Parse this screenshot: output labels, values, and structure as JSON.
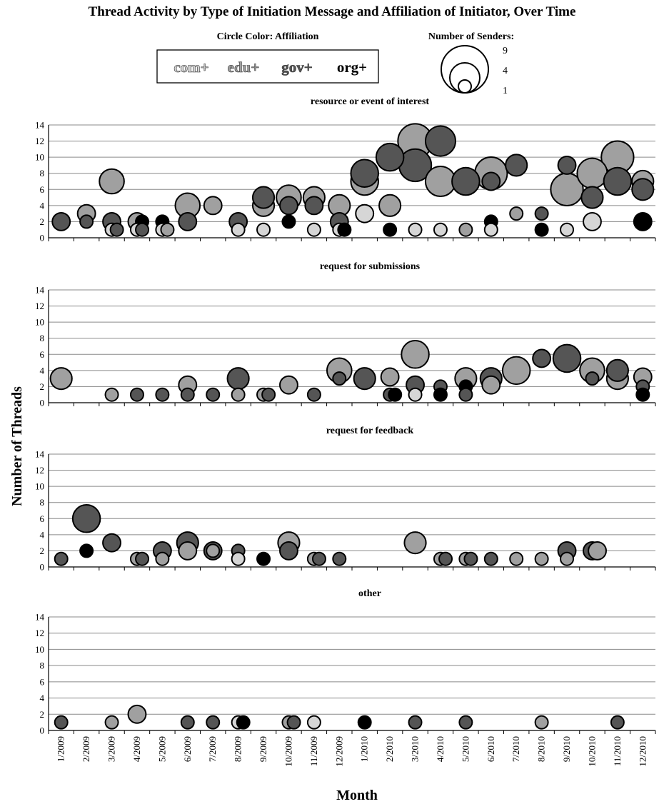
{
  "chart_data": {
    "type": "scatter",
    "title": "Thread Activity by Type of Initiation Message and Affiliation of Initiator, Over Time",
    "xlabel": "Month",
    "ylabel": "Number of Threads",
    "ylim": [
      0,
      14
    ],
    "yticks": [
      "0",
      "2",
      "4",
      "6",
      "8",
      "10",
      "12",
      "14"
    ],
    "grid": true,
    "months": [
      "1/2009",
      "2/2009",
      "3/2009",
      "4/2009",
      "5/2009",
      "6/2009",
      "7/2009",
      "8/2009",
      "9/2009",
      "10/2009",
      "11/2009",
      "12/2009",
      "1/2010",
      "2/2010",
      "3/2010",
      "4/2010",
      "5/2010",
      "6/2010",
      "7/2010",
      "8/2010",
      "9/2010",
      "10/2010",
      "11/2010",
      "12/2010"
    ],
    "color_legend": {
      "title": "Circle Color: Affiliation",
      "items": [
        {
          "label": "com+",
          "color": "#d6d6d6"
        },
        {
          "label": "edu+",
          "color": "#a0a0a0"
        },
        {
          "label": "gov+",
          "color": "#555555"
        },
        {
          "label": "org+",
          "color": "#000000"
        }
      ]
    },
    "size_legend": {
      "title": "Number of Senders:",
      "values": [
        "9",
        "4",
        "1"
      ]
    },
    "panels": [
      {
        "title": "resource or event of interest",
        "points": [
          {
            "x": 1,
            "y": 2,
            "senders": 2,
            "aff": "gov"
          },
          {
            "x": 2,
            "y": 3,
            "senders": 2,
            "aff": "edu"
          },
          {
            "x": 2,
            "y": 2,
            "senders": 1,
            "aff": "gov"
          },
          {
            "x": 3,
            "y": 7,
            "senders": 4,
            "aff": "edu"
          },
          {
            "x": 3,
            "y": 2,
            "senders": 2,
            "aff": "gov"
          },
          {
            "x": 3,
            "y": 1,
            "senders": 1,
            "aff": "com"
          },
          {
            "x": 3.2,
            "y": 1,
            "senders": 1,
            "aff": "gov"
          },
          {
            "x": 4,
            "y": 2,
            "senders": 2,
            "aff": "edu"
          },
          {
            "x": 4.2,
            "y": 2,
            "senders": 1,
            "aff": "org"
          },
          {
            "x": 4,
            "y": 1,
            "senders": 1,
            "aff": "com"
          },
          {
            "x": 4.2,
            "y": 1,
            "senders": 1,
            "aff": "gov"
          },
          {
            "x": 5,
            "y": 2,
            "senders": 1,
            "aff": "org"
          },
          {
            "x": 5,
            "y": 1,
            "senders": 1,
            "aff": "com"
          },
          {
            "x": 5.2,
            "y": 1,
            "senders": 1,
            "aff": "edu"
          },
          {
            "x": 6,
            "y": 4,
            "senders": 4,
            "aff": "edu"
          },
          {
            "x": 6,
            "y": 2,
            "senders": 2,
            "aff": "gov"
          },
          {
            "x": 7,
            "y": 4,
            "senders": 2,
            "aff": "edu"
          },
          {
            "x": 8,
            "y": 2,
            "senders": 2,
            "aff": "gov"
          },
          {
            "x": 8,
            "y": 1,
            "senders": 1,
            "aff": "com"
          },
          {
            "x": 9,
            "y": 4,
            "senders": 3,
            "aff": "edu"
          },
          {
            "x": 9,
            "y": 5,
            "senders": 3,
            "aff": "gov"
          },
          {
            "x": 9,
            "y": 1,
            "senders": 1,
            "aff": "com"
          },
          {
            "x": 10,
            "y": 5,
            "senders": 4,
            "aff": "edu"
          },
          {
            "x": 10,
            "y": 4,
            "senders": 2,
            "aff": "gov"
          },
          {
            "x": 10,
            "y": 2,
            "senders": 1,
            "aff": "org"
          },
          {
            "x": 11,
            "y": 5,
            "senders": 3,
            "aff": "edu"
          },
          {
            "x": 11,
            "y": 4,
            "senders": 2,
            "aff": "gov"
          },
          {
            "x": 11,
            "y": 1,
            "senders": 1,
            "aff": "com"
          },
          {
            "x": 12,
            "y": 4,
            "senders": 3,
            "aff": "edu"
          },
          {
            "x": 12,
            "y": 2,
            "senders": 2,
            "aff": "gov"
          },
          {
            "x": 12,
            "y": 1,
            "senders": 1,
            "aff": "com"
          },
          {
            "x": 12.2,
            "y": 1,
            "senders": 1,
            "aff": "org"
          },
          {
            "x": 13,
            "y": 7,
            "senders": 5,
            "aff": "edu"
          },
          {
            "x": 13,
            "y": 8,
            "senders": 5,
            "aff": "gov"
          },
          {
            "x": 13,
            "y": 3,
            "senders": 2,
            "aff": "com"
          },
          {
            "x": 14,
            "y": 10,
            "senders": 5,
            "aff": "gov"
          },
          {
            "x": 14,
            "y": 4,
            "senders": 3,
            "aff": "edu"
          },
          {
            "x": 14,
            "y": 1,
            "senders": 1,
            "aff": "org"
          },
          {
            "x": 15,
            "y": 12,
            "senders": 8,
            "aff": "edu"
          },
          {
            "x": 15,
            "y": 9,
            "senders": 7,
            "aff": "gov"
          },
          {
            "x": 15,
            "y": 1,
            "senders": 1,
            "aff": "com"
          },
          {
            "x": 16,
            "y": 12,
            "senders": 6,
            "aff": "gov"
          },
          {
            "x": 16,
            "y": 7,
            "senders": 6,
            "aff": "edu"
          },
          {
            "x": 16,
            "y": 1,
            "senders": 1,
            "aff": "com"
          },
          {
            "x": 17,
            "y": 7,
            "senders": 5,
            "aff": "gov"
          },
          {
            "x": 17,
            "y": 1,
            "senders": 1,
            "aff": "edu"
          },
          {
            "x": 18,
            "y": 8,
            "senders": 7,
            "aff": "edu"
          },
          {
            "x": 18,
            "y": 7,
            "senders": 2,
            "aff": "gov"
          },
          {
            "x": 18,
            "y": 2,
            "senders": 1,
            "aff": "org"
          },
          {
            "x": 18,
            "y": 1,
            "senders": 1,
            "aff": "com"
          },
          {
            "x": 19,
            "y": 9,
            "senders": 3,
            "aff": "gov"
          },
          {
            "x": 19,
            "y": 3,
            "senders": 1,
            "aff": "edu"
          },
          {
            "x": 20,
            "y": 3,
            "senders": 1,
            "aff": "gov"
          },
          {
            "x": 20,
            "y": 1,
            "senders": 1,
            "aff": "org"
          },
          {
            "x": 21,
            "y": 6,
            "senders": 7,
            "aff": "edu"
          },
          {
            "x": 21,
            "y": 9,
            "senders": 2,
            "aff": "gov"
          },
          {
            "x": 21,
            "y": 1,
            "senders": 1,
            "aff": "com"
          },
          {
            "x": 22,
            "y": 8,
            "senders": 6,
            "aff": "edu"
          },
          {
            "x": 22,
            "y": 5,
            "senders": 3,
            "aff": "gov"
          },
          {
            "x": 22,
            "y": 2,
            "senders": 2,
            "aff": "com"
          },
          {
            "x": 23,
            "y": 10,
            "senders": 7,
            "aff": "edu"
          },
          {
            "x": 23,
            "y": 7,
            "senders": 5,
            "aff": "gov"
          },
          {
            "x": 24,
            "y": 7,
            "senders": 3,
            "aff": "edu"
          },
          {
            "x": 24,
            "y": 6,
            "senders": 3,
            "aff": "gov"
          },
          {
            "x": 24,
            "y": 2,
            "senders": 2,
            "aff": "org"
          }
        ]
      },
      {
        "title": "request for submissions",
        "points": [
          {
            "x": 1,
            "y": 3,
            "senders": 3,
            "aff": "edu"
          },
          {
            "x": 3,
            "y": 1,
            "senders": 1,
            "aff": "edu"
          },
          {
            "x": 4,
            "y": 1,
            "senders": 1,
            "aff": "gov"
          },
          {
            "x": 5,
            "y": 1,
            "senders": 1,
            "aff": "gov"
          },
          {
            "x": 6,
            "y": 2.2,
            "senders": 2,
            "aff": "edu"
          },
          {
            "x": 6,
            "y": 1,
            "senders": 1,
            "aff": "gov"
          },
          {
            "x": 7,
            "y": 1,
            "senders": 1,
            "aff": "gov"
          },
          {
            "x": 8,
            "y": 3,
            "senders": 3,
            "aff": "gov"
          },
          {
            "x": 8,
            "y": 1,
            "senders": 1,
            "aff": "edu"
          },
          {
            "x": 9,
            "y": 1,
            "senders": 1,
            "aff": "edu"
          },
          {
            "x": 9.2,
            "y": 1,
            "senders": 1,
            "aff": "gov"
          },
          {
            "x": 10,
            "y": 2.2,
            "senders": 2,
            "aff": "edu"
          },
          {
            "x": 11,
            "y": 1,
            "senders": 1,
            "aff": "gov"
          },
          {
            "x": 12,
            "y": 4,
            "senders": 4,
            "aff": "edu"
          },
          {
            "x": 12,
            "y": 3,
            "senders": 1,
            "aff": "gov"
          },
          {
            "x": 13,
            "y": 3,
            "senders": 3,
            "aff": "gov"
          },
          {
            "x": 14,
            "y": 3.2,
            "senders": 2,
            "aff": "edu"
          },
          {
            "x": 14,
            "y": 1,
            "senders": 1,
            "aff": "gov"
          },
          {
            "x": 14.2,
            "y": 1,
            "senders": 1,
            "aff": "org"
          },
          {
            "x": 15,
            "y": 6,
            "senders": 5,
            "aff": "edu"
          },
          {
            "x": 15,
            "y": 2.2,
            "senders": 2,
            "aff": "gov"
          },
          {
            "x": 15,
            "y": 1,
            "senders": 1,
            "aff": "com"
          },
          {
            "x": 16,
            "y": 2,
            "senders": 1,
            "aff": "gov"
          },
          {
            "x": 16,
            "y": 1,
            "senders": 1,
            "aff": "org"
          },
          {
            "x": 17,
            "y": 3,
            "senders": 3,
            "aff": "edu"
          },
          {
            "x": 17,
            "y": 2,
            "senders": 1,
            "aff": "org"
          },
          {
            "x": 17,
            "y": 1,
            "senders": 1,
            "aff": "gov"
          },
          {
            "x": 18,
            "y": 3,
            "senders": 3,
            "aff": "gov"
          },
          {
            "x": 18,
            "y": 2.2,
            "senders": 2,
            "aff": "edu"
          },
          {
            "x": 19,
            "y": 4,
            "senders": 5,
            "aff": "edu"
          },
          {
            "x": 20,
            "y": 5.5,
            "senders": 2,
            "aff": "gov"
          },
          {
            "x": 21,
            "y": 5.5,
            "senders": 5,
            "aff": "gov"
          },
          {
            "x": 22,
            "y": 4,
            "senders": 4,
            "aff": "edu"
          },
          {
            "x": 22,
            "y": 3,
            "senders": 1,
            "aff": "gov"
          },
          {
            "x": 23,
            "y": 3,
            "senders": 3,
            "aff": "edu"
          },
          {
            "x": 23,
            "y": 4,
            "senders": 3,
            "aff": "gov"
          },
          {
            "x": 24,
            "y": 3.2,
            "senders": 2,
            "aff": "edu"
          },
          {
            "x": 24,
            "y": 2,
            "senders": 1,
            "aff": "gov"
          },
          {
            "x": 24,
            "y": 1,
            "senders": 1,
            "aff": "org"
          }
        ]
      },
      {
        "title": "request for feedback",
        "points": [
          {
            "x": 1,
            "y": 1,
            "senders": 1,
            "aff": "gov"
          },
          {
            "x": 2,
            "y": 6,
            "senders": 5,
            "aff": "gov"
          },
          {
            "x": 2,
            "y": 2,
            "senders": 1,
            "aff": "org"
          },
          {
            "x": 3,
            "y": 3,
            "senders": 2,
            "aff": "gov"
          },
          {
            "x": 4,
            "y": 1,
            "senders": 1,
            "aff": "edu"
          },
          {
            "x": 4.2,
            "y": 1,
            "senders": 1,
            "aff": "gov"
          },
          {
            "x": 5,
            "y": 2,
            "senders": 2,
            "aff": "gov"
          },
          {
            "x": 5,
            "y": 1,
            "senders": 1,
            "aff": "edu"
          },
          {
            "x": 6,
            "y": 3,
            "senders": 3,
            "aff": "gov"
          },
          {
            "x": 6,
            "y": 2,
            "senders": 2,
            "aff": "edu"
          },
          {
            "x": 7,
            "y": 2,
            "senders": 2,
            "aff": "gov"
          },
          {
            "x": 7,
            "y": 2,
            "senders": 1,
            "aff": "edu"
          },
          {
            "x": 8,
            "y": 2,
            "senders": 1,
            "aff": "gov"
          },
          {
            "x": 8,
            "y": 1,
            "senders": 1,
            "aff": "com"
          },
          {
            "x": 9,
            "y": 1,
            "senders": 1,
            "aff": "org"
          },
          {
            "x": 10,
            "y": 3,
            "senders": 3,
            "aff": "edu"
          },
          {
            "x": 10,
            "y": 2,
            "senders": 2,
            "aff": "gov"
          },
          {
            "x": 11,
            "y": 1,
            "senders": 1,
            "aff": "edu"
          },
          {
            "x": 11.2,
            "y": 1,
            "senders": 1,
            "aff": "gov"
          },
          {
            "x": 12,
            "y": 1,
            "senders": 1,
            "aff": "gov"
          },
          {
            "x": 15,
            "y": 3,
            "senders": 3,
            "aff": "edu"
          },
          {
            "x": 16,
            "y": 1,
            "senders": 1,
            "aff": "edu"
          },
          {
            "x": 16.2,
            "y": 1,
            "senders": 1,
            "aff": "gov"
          },
          {
            "x": 17,
            "y": 1,
            "senders": 1,
            "aff": "edu"
          },
          {
            "x": 17.2,
            "y": 1,
            "senders": 1,
            "aff": "gov"
          },
          {
            "x": 18,
            "y": 1,
            "senders": 1,
            "aff": "gov"
          },
          {
            "x": 19,
            "y": 1,
            "senders": 1,
            "aff": "edu"
          },
          {
            "x": 20,
            "y": 1,
            "senders": 1,
            "aff": "edu"
          },
          {
            "x": 21,
            "y": 2,
            "senders": 2,
            "aff": "gov"
          },
          {
            "x": 21,
            "y": 1,
            "senders": 1,
            "aff": "edu"
          },
          {
            "x": 22,
            "y": 2,
            "senders": 2,
            "aff": "gov"
          },
          {
            "x": 22.2,
            "y": 2,
            "senders": 2,
            "aff": "edu"
          }
        ]
      },
      {
        "title": "other",
        "points": [
          {
            "x": 1,
            "y": 1,
            "senders": 1,
            "aff": "gov"
          },
          {
            "x": 3,
            "y": 1,
            "senders": 1,
            "aff": "edu"
          },
          {
            "x": 4,
            "y": 2,
            "senders": 2,
            "aff": "edu"
          },
          {
            "x": 6,
            "y": 1,
            "senders": 1,
            "aff": "gov"
          },
          {
            "x": 7,
            "y": 1,
            "senders": 1,
            "aff": "gov"
          },
          {
            "x": 8,
            "y": 1,
            "senders": 1,
            "aff": "com"
          },
          {
            "x": 8.2,
            "y": 1,
            "senders": 1,
            "aff": "org"
          },
          {
            "x": 10,
            "y": 1,
            "senders": 1,
            "aff": "edu"
          },
          {
            "x": 10.2,
            "y": 1,
            "senders": 1,
            "aff": "gov"
          },
          {
            "x": 11,
            "y": 1,
            "senders": 1,
            "aff": "com"
          },
          {
            "x": 13,
            "y": 1,
            "senders": 1,
            "aff": "org"
          },
          {
            "x": 15,
            "y": 1,
            "senders": 1,
            "aff": "gov"
          },
          {
            "x": 17,
            "y": 1,
            "senders": 1,
            "aff": "gov"
          },
          {
            "x": 20,
            "y": 1,
            "senders": 1,
            "aff": "edu"
          },
          {
            "x": 23,
            "y": 1,
            "senders": 1,
            "aff": "gov"
          }
        ]
      }
    ]
  }
}
